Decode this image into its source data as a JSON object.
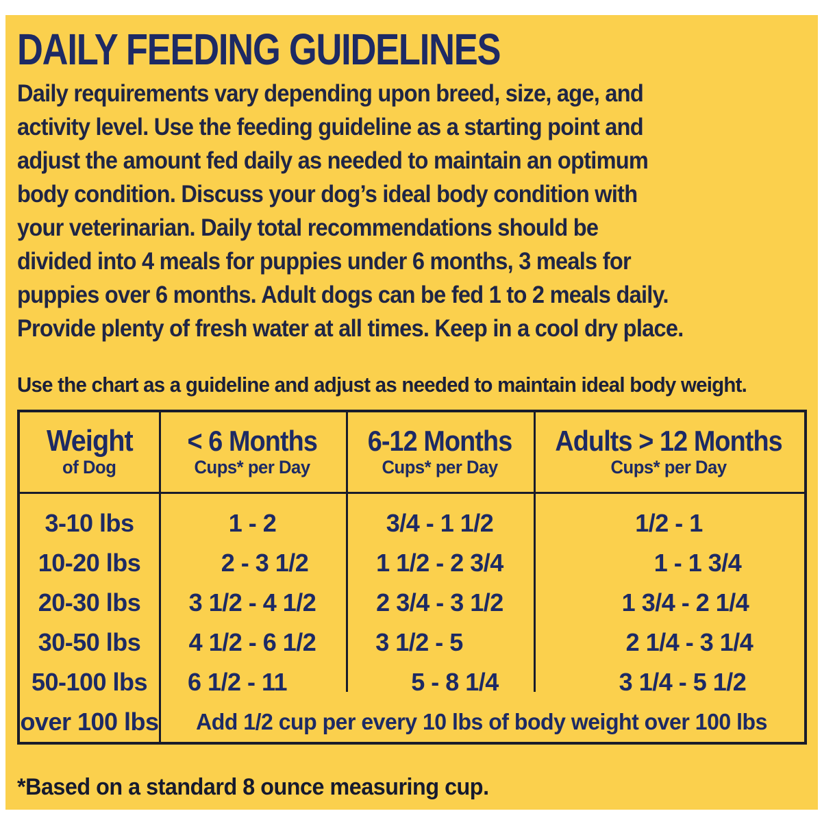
{
  "page": {
    "title": "DAILY FEEDING GUIDELINES",
    "intro_lines": [
      "Daily requirements vary depending upon breed, size, age, and",
      "activity level. Use the feeding guideline as a starting point and",
      "adjust the amount fed daily as needed to maintain an optimum",
      "body condition. Discuss your dog’s ideal body condition with",
      "your veterinarian. Daily total recommendations should be",
      "divided into 4 meals for puppies under 6 months, 3 meals for",
      "puppies over 6 months. Adult dogs can be fed 1 to 2 meals daily.",
      "Provide plenty of fresh water at all times. Keep in a cool dry place."
    ],
    "chart_note": "Use the chart as a guideline and adjust as needed to maintain ideal body weight.",
    "footnote": "*Based on a standard 8 ounce measuring cup."
  },
  "table": {
    "columns": [
      {
        "title": "Weight",
        "subtitle": "of Dog"
      },
      {
        "title": "< 6 Months",
        "subtitle": "Cups* per Day"
      },
      {
        "title": "6-12 Months",
        "subtitle": "Cups* per Day"
      },
      {
        "title": "Adults > 12 Months",
        "subtitle": "Cups* per Day"
      }
    ],
    "rows": [
      [
        "3-10 lbs",
        "1 - 2",
        "3/4 - 1 1/2",
        "1/2 - 1"
      ],
      [
        "10-20 lbs",
        "2 - 3 1/2",
        "1 1/2 - 2 3/4",
        "1 - 1 3/4"
      ],
      [
        "20-30 lbs",
        "3 1/2 - 4 1/2",
        "2 3/4 - 3 1/2",
        "1 3/4 - 2 1/4"
      ],
      [
        "30-50 lbs",
        "4 1/2 - 6 1/2",
        "3 1/2 - 5",
        "2 1/4 - 3 1/4"
      ],
      [
        "50-100 lbs",
        "6 1/2 - 11",
        "5 - 8 1/4",
        "3 1/4 - 5 1/2"
      ]
    ],
    "span_row": {
      "weight": "over 100 lbs",
      "note": "Add 1/2 cup per every 10 lbs of body weight over 100 lbs"
    }
  },
  "colors": {
    "background": "#fbd04d",
    "page_margin": "#ffffff",
    "heading_navy": "#1d2a64",
    "body_text": "#1f2545",
    "footnote_text": "#161a2e",
    "table_border": "#191c2b"
  }
}
